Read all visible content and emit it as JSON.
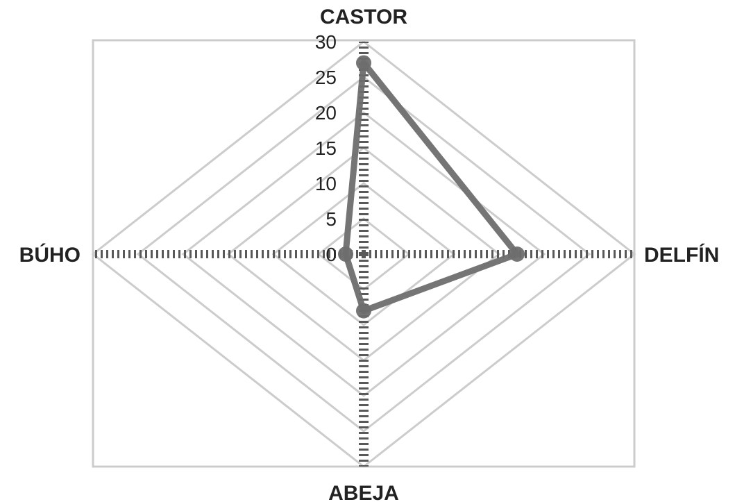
{
  "chart_data": {
    "type": "radar",
    "categories": [
      "CASTOR",
      "DELFÍN",
      "ABEJA",
      "BÚHO"
    ],
    "r_ticks": [
      "0",
      "5",
      "10",
      "15",
      "20",
      "25",
      "30"
    ],
    "rlim": [
      0,
      30
    ],
    "grid": true,
    "series": [
      {
        "values": [
          27,
          17,
          8,
          2
        ],
        "color": "#6e6e6e"
      }
    ]
  },
  "colors": {
    "grid": "#cccccc",
    "axis": "#595959",
    "series": "#6e6e6e",
    "text": "#222222"
  }
}
